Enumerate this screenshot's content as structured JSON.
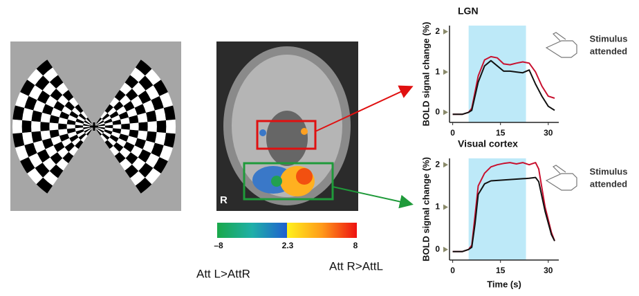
{
  "chart_data": [
    {
      "type": "line",
      "title": "LGN",
      "y_label": "BOLD signal change (%)",
      "x": [
        0,
        3,
        5,
        6,
        8,
        10,
        12,
        14,
        16,
        18,
        20,
        22,
        24,
        26,
        28,
        30,
        32
      ],
      "series": [
        {
          "name": "Stimulus attended",
          "color": "#c8102e",
          "values": [
            -0.05,
            -0.05,
            0,
            0.1,
            0.9,
            1.3,
            1.38,
            1.35,
            1.2,
            1.18,
            1.22,
            1.25,
            1.22,
            1.0,
            0.65,
            0.4,
            0.35
          ]
        },
        {
          "color": "#111111",
          "values": [
            -0.05,
            -0.05,
            0,
            0.05,
            0.75,
            1.15,
            1.28,
            1.15,
            1.02,
            1.02,
            1.0,
            0.98,
            1.05,
            0.7,
            0.4,
            0.15,
            0.05
          ]
        }
      ],
      "annotation": [
        "Stimulus",
        "attended"
      ],
      "shade": [
        5,
        23
      ],
      "shade_color": "#bde9f8",
      "xlim": [
        -1,
        33.3
      ],
      "ylim": [
        -0.25,
        2.15
      ],
      "xticks": [
        0,
        15,
        30
      ],
      "yticks": [
        0,
        1,
        2
      ]
    },
    {
      "type": "line",
      "title": "Visual cortex",
      "y_label": "BOLD signal change (%)",
      "x_label": "Time (s)",
      "x": [
        0,
        3,
        5,
        6,
        7,
        8,
        10,
        12,
        14,
        16,
        18,
        20,
        22,
        24,
        26,
        27,
        29,
        31,
        32
      ],
      "series": [
        {
          "name": "Stimulus attended",
          "color": "#c8102e",
          "values": [
            -0.05,
            -0.05,
            0,
            0.1,
            0.8,
            1.5,
            1.8,
            1.95,
            2.0,
            2.03,
            2.05,
            2.02,
            2.05,
            2.0,
            2.05,
            1.9,
            1.0,
            0.4,
            0.2
          ]
        },
        {
          "color": "#111111",
          "values": [
            -0.05,
            -0.05,
            0,
            0.05,
            0.6,
            1.3,
            1.55,
            1.62,
            1.63,
            1.64,
            1.65,
            1.66,
            1.67,
            1.68,
            1.7,
            1.6,
            0.9,
            0.35,
            0.2
          ]
        }
      ],
      "annotation": [
        "Stimulus",
        "attended"
      ],
      "shade": [
        5,
        23
      ],
      "shade_color": "#bde9f8",
      "xlim": [
        -1,
        33.3
      ],
      "ylim": [
        -0.25,
        2.15
      ],
      "xticks": [
        0,
        15,
        30
      ],
      "yticks": [
        0,
        1,
        2
      ]
    }
  ],
  "brain": {
    "side_label": "R"
  },
  "colorbar": {
    "labels": [
      "–8",
      "2.3",
      "8"
    ]
  },
  "contrast_labels": [
    "Att L>AttR",
    "Att R>AttL"
  ]
}
